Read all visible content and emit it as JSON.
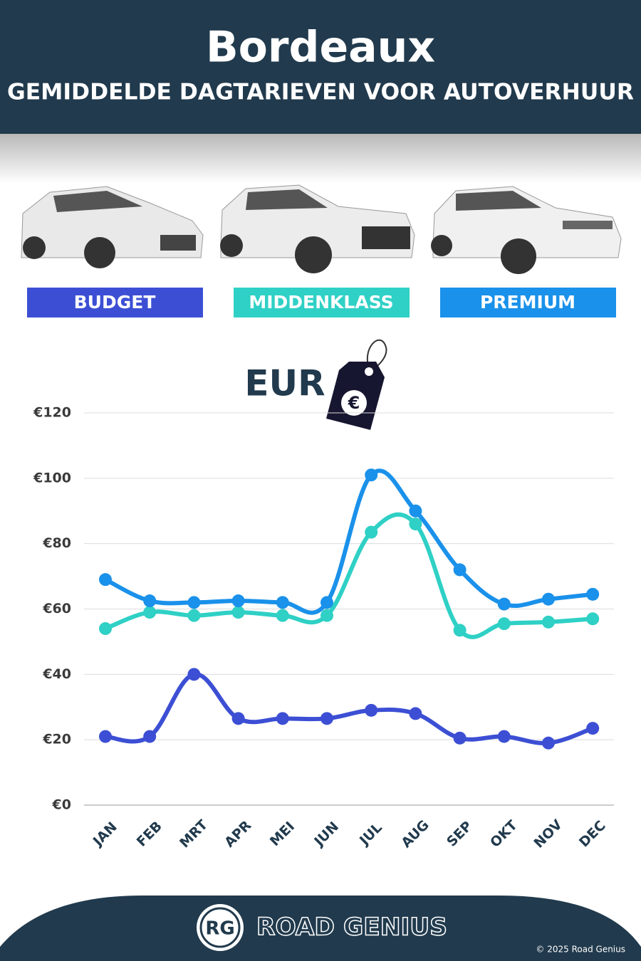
{
  "header": {
    "title": "Bordeaux",
    "subtitle": "GEMIDDELDE DAGTARIEVEN VOOR AUTOVERHUUR"
  },
  "chart_data": {
    "type": "line",
    "unit_label": "EUR",
    "categories": [
      "JAN",
      "FEB",
      "MRT",
      "APR",
      "MEI",
      "JUN",
      "JUL",
      "AUG",
      "SEP",
      "OKT",
      "NOV",
      "DEC"
    ],
    "series": [
      {
        "name": "BUDGET",
        "color": "#3c4fd4",
        "values": [
          21,
          21,
          40,
          26.5,
          26.5,
          26.5,
          29,
          28,
          20.5,
          21,
          19,
          23.5
        ]
      },
      {
        "name": "MIDDENKLASS",
        "color": "#2fd0c5",
        "values": [
          54,
          59,
          58,
          59,
          58,
          58,
          83.5,
          86,
          53.5,
          55.5,
          56,
          57
        ]
      },
      {
        "name": "PREMIUM",
        "color": "#1a91ea",
        "values": [
          69,
          62.5,
          62,
          62.5,
          62,
          62,
          101,
          90,
          72,
          61.5,
          63,
          64.5
        ]
      }
    ],
    "ylim": [
      0,
      120
    ],
    "yticks": [
      {
        "value": 0,
        "label": "€0"
      },
      {
        "value": 20,
        "label": "€20"
      },
      {
        "value": 40,
        "label": "€40"
      },
      {
        "value": 60,
        "label": "€60"
      },
      {
        "value": 80,
        "label": "€80"
      },
      {
        "value": 100,
        "label": "€100"
      },
      {
        "value": 120,
        "label": "€120"
      }
    ],
    "grid": true
  },
  "footer": {
    "logo": "RG",
    "brand": "ROAD GENIUS",
    "copyright": "© 2025 Road Genius"
  }
}
